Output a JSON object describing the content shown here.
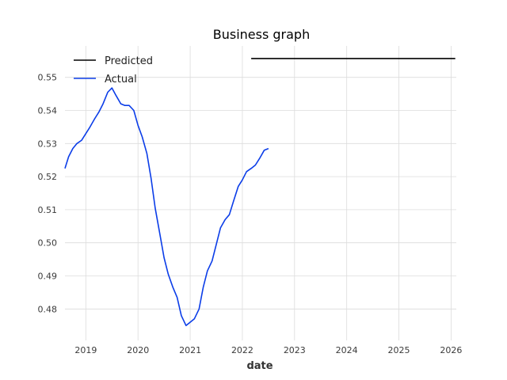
{
  "chart_data": {
    "type": "line",
    "title": "Business graph",
    "xlabel": "date",
    "ylabel": "",
    "xlim": [
      2018.6,
      2026.1
    ],
    "ylim": [
      0.4705,
      0.5595
    ],
    "x_ticks": [
      2019,
      2020,
      2021,
      2022,
      2023,
      2024,
      2025,
      2026
    ],
    "x_tick_labels": [
      "2019",
      "2020",
      "2021",
      "2022",
      "2023",
      "2024",
      "2025",
      "2026"
    ],
    "y_ticks": [
      0.48,
      0.49,
      0.5,
      0.51,
      0.52,
      0.53,
      0.54,
      0.55
    ],
    "y_tick_labels": [
      "0.48",
      "0.49",
      "0.50",
      "0.51",
      "0.52",
      "0.53",
      "0.54",
      "0.55"
    ],
    "grid": true,
    "legend_position": "top-left",
    "series": [
      {
        "name": "Predicted",
        "color": "#000000",
        "x": [
          2022.17,
          2026.08
        ],
        "y": [
          0.5557,
          0.5557
        ]
      },
      {
        "name": "Actual",
        "color": "#0b3de8",
        "x": [
          2018.6,
          2018.67,
          2018.75,
          2018.83,
          2018.92,
          2019.0,
          2019.08,
          2019.17,
          2019.25,
          2019.33,
          2019.42,
          2019.5,
          2019.58,
          2019.67,
          2019.75,
          2019.83,
          2019.92,
          2020.0,
          2020.08,
          2020.17,
          2020.25,
          2020.33,
          2020.42,
          2020.5,
          2020.58,
          2020.67,
          2020.75,
          2020.83,
          2020.92,
          2021.0,
          2021.08,
          2021.17,
          2021.25,
          2021.33,
          2021.42,
          2021.5,
          2021.58,
          2021.67,
          2021.75,
          2021.83,
          2021.92,
          2022.0,
          2022.08,
          2022.17,
          2022.25,
          2022.33,
          2022.42,
          2022.5
        ],
        "y": [
          0.5225,
          0.526,
          0.5285,
          0.53,
          0.531,
          0.533,
          0.535,
          0.5375,
          0.5395,
          0.542,
          0.5455,
          0.5468,
          0.5445,
          0.542,
          0.5415,
          0.5415,
          0.54,
          0.5355,
          0.532,
          0.527,
          0.5195,
          0.5105,
          0.5025,
          0.4955,
          0.4905,
          0.4865,
          0.4835,
          0.478,
          0.475,
          0.476,
          0.477,
          0.48,
          0.4865,
          0.4915,
          0.4945,
          0.4995,
          0.5045,
          0.507,
          0.5085,
          0.5125,
          0.517,
          0.519,
          0.5215,
          0.5225,
          0.5235,
          0.5255,
          0.528,
          0.5285
        ]
      }
    ]
  }
}
